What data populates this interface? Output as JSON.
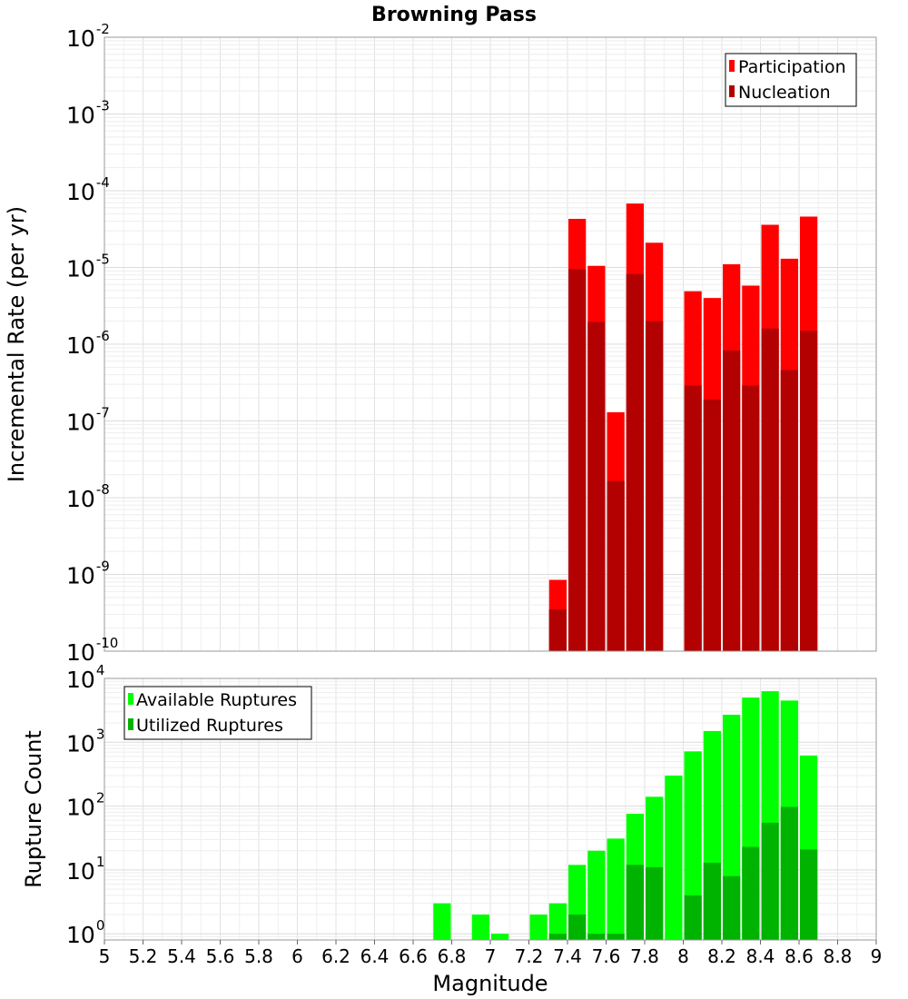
{
  "chart_data": [
    {
      "type": "bar",
      "title": "Browning Pass",
      "ylabel": "Incremental Rate (per yr)",
      "yscale": "log",
      "ylim": [
        1e-10,
        0.01
      ],
      "xlim": [
        5,
        9
      ],
      "bar_width": 0.1,
      "legend_position": "top-right",
      "grid": true,
      "x": [
        7.35,
        7.45,
        7.55,
        7.65,
        7.75,
        7.85,
        8.05,
        8.15,
        8.25,
        8.35,
        8.45,
        8.55,
        8.65
      ],
      "series": [
        {
          "name": "Participation",
          "color": "#ff0000",
          "values": [
            8.5e-10,
            4.3e-05,
            1.05e-05,
            1.3e-07,
            6.8e-05,
            2.1e-05,
            4.9e-06,
            4e-06,
            1.1e-05,
            5.8e-06,
            3.6e-05,
            1.3e-05,
            4.6e-05
          ]
        },
        {
          "name": "Nucleation",
          "color": "#b30000",
          "values": [
            3.5e-10,
            9.5e-06,
            1.95e-06,
            1.65e-08,
            8.2e-06,
            2e-06,
            2.9e-07,
            1.9e-07,
            8.3e-07,
            2.9e-07,
            1.6e-06,
            4.6e-07,
            1.5e-06
          ]
        }
      ],
      "ytick_exponents": [
        "-10",
        "-9",
        "-8",
        "-7",
        "-6",
        "-5",
        "-4",
        "-3",
        "-2"
      ]
    },
    {
      "type": "bar",
      "ylabel": "Rupture Count",
      "xlabel": "Magnitude",
      "yscale": "log",
      "ylim": [
        0.8,
        10000
      ],
      "xlim": [
        5,
        9
      ],
      "bar_width": 0.1,
      "legend_position": "top-left",
      "grid": true,
      "series": [
        {
          "name": "Available Ruptures",
          "color": "#00ff00",
          "x": [
            6.75,
            6.95,
            7.05,
            7.25,
            7.35,
            7.45,
            7.55,
            7.65,
            7.75,
            7.85,
            7.95,
            8.05,
            8.15,
            8.25,
            8.35,
            8.45,
            8.55,
            8.65
          ],
          "values": [
            3,
            2,
            1,
            2,
            3,
            12,
            20,
            31,
            76,
            140,
            300,
            720,
            1500,
            2700,
            5000,
            6300,
            4500,
            620
          ]
        },
        {
          "name": "Utilized Ruptures",
          "color": "#00b300",
          "x": [
            7.35,
            7.45,
            7.55,
            7.65,
            7.75,
            7.85,
            8.05,
            8.15,
            8.25,
            8.35,
            8.45,
            8.55,
            8.65
          ],
          "values": [
            1,
            2,
            1,
            1,
            12,
            11,
            4,
            13,
            8,
            23,
            55,
            97,
            21
          ]
        }
      ],
      "ytick_exponents": [
        "0",
        "1",
        "2",
        "3",
        "4"
      ],
      "xtick_labels": [
        "5",
        "5.2",
        "5.4",
        "5.6",
        "5.8",
        "6",
        "6.2",
        "6.4",
        "6.6",
        "6.8",
        "7",
        "7.2",
        "7.4",
        "7.6",
        "7.8",
        "8",
        "8.2",
        "8.4",
        "8.6",
        "8.8",
        "9"
      ]
    }
  ]
}
